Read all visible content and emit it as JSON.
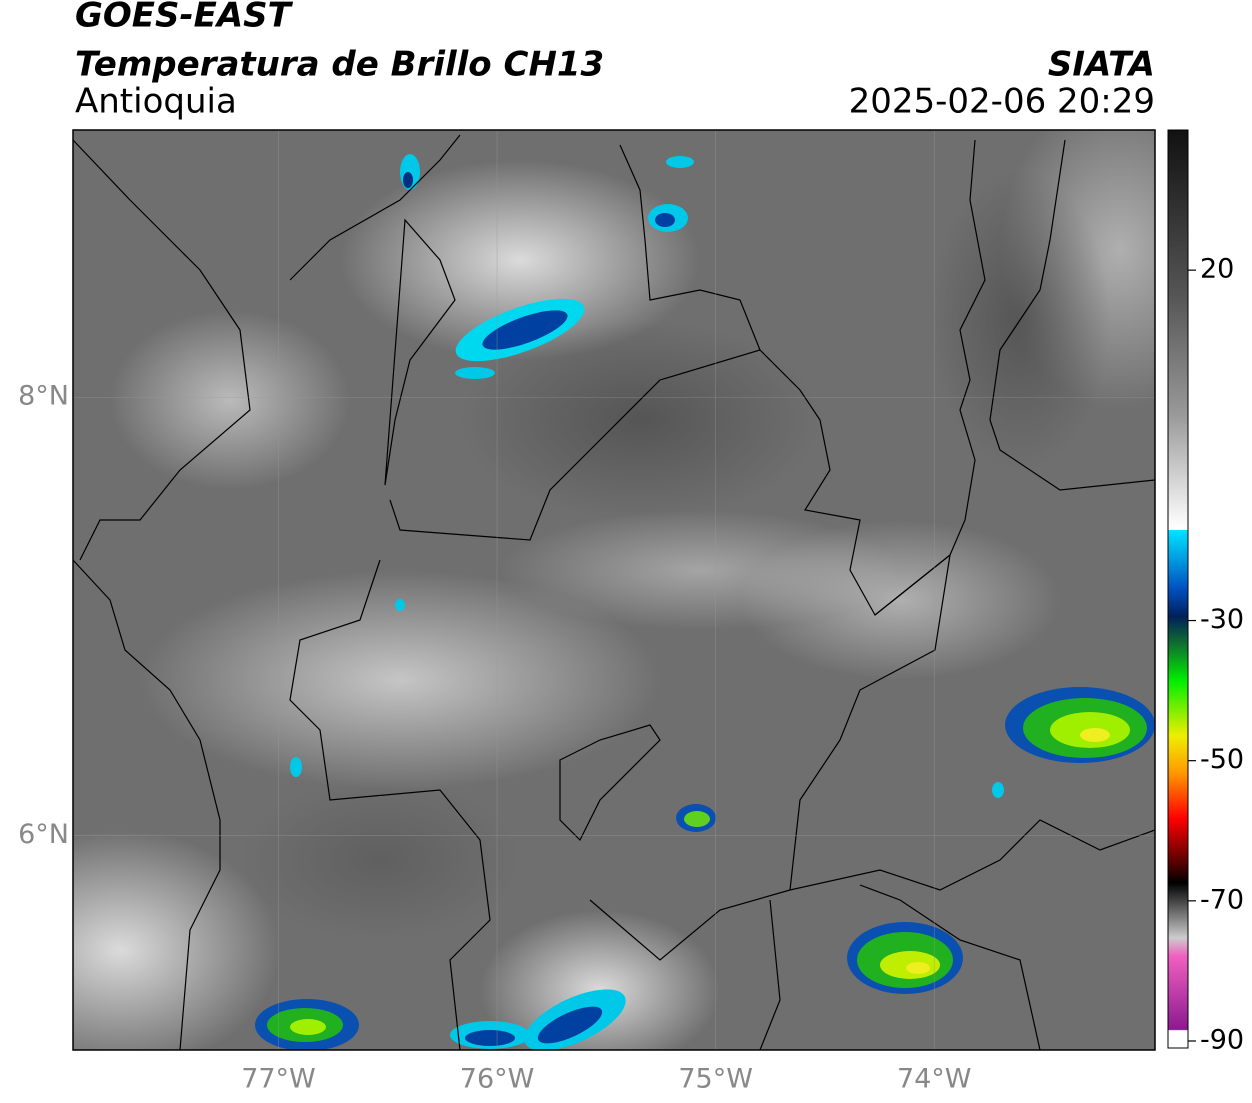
{
  "header": {
    "title": "GOES-EAST",
    "subtitle": "Temperatura de Brillo CH13",
    "region": "Antioquia",
    "agency": "SIATA",
    "datetime": "2025-02-06 20:29"
  },
  "map": {
    "lonlim": [
      -77.94,
      -72.99
    ],
    "latlim": [
      5.02,
      9.22
    ],
    "lat_ticks": [
      {
        "value": 8,
        "label": "8°N"
      },
      {
        "value": 6,
        "label": "6°N"
      }
    ],
    "lon_ticks": [
      {
        "value": -77,
        "label": "77°W"
      },
      {
        "value": -76,
        "label": "76°W"
      },
      {
        "value": -75,
        "label": "75°W"
      },
      {
        "value": -74,
        "label": "74°W"
      }
    ]
  },
  "colorbar": {
    "lim": [
      -91,
      40
    ],
    "ticks": [
      20,
      -30,
      -50,
      -70,
      -90
    ]
  }
}
